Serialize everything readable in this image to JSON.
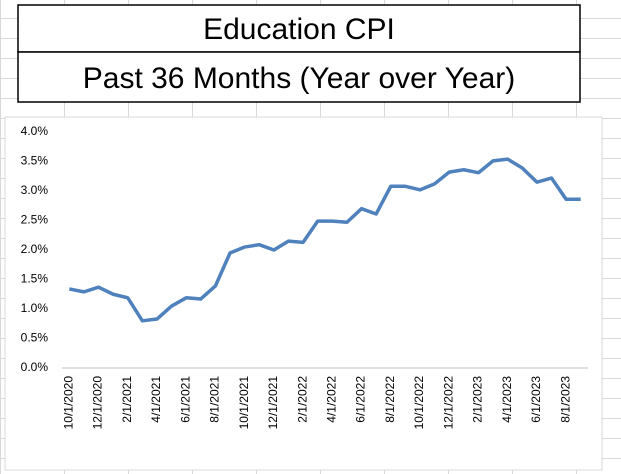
{
  "chart_data": {
    "type": "line",
    "title": "Education CPI",
    "subtitle": "Past 36 Months (Year over Year)",
    "categories": [
      "10/1/2020",
      null,
      "12/1/2020",
      null,
      "2/1/2021",
      null,
      "4/1/2021",
      null,
      "6/1/2021",
      null,
      "8/1/2021",
      null,
      "10/1/2021",
      null,
      "12/1/2021",
      null,
      "2/1/2022",
      null,
      "4/1/2022",
      null,
      "6/1/2022",
      null,
      "8/1/2022",
      null,
      "10/1/2022",
      null,
      "12/1/2022",
      null,
      "2/1/2023",
      null,
      "4/1/2023",
      null,
      "6/1/2023",
      null,
      "8/1/2023",
      null
    ],
    "values": [
      1.34,
      1.29,
      1.37,
      1.25,
      1.19,
      0.8,
      0.83,
      1.05,
      1.19,
      1.17,
      1.39,
      1.95,
      2.05,
      2.09,
      2.0,
      2.15,
      2.13,
      2.49,
      2.49,
      2.47,
      2.7,
      2.61,
      3.08,
      3.08,
      3.02,
      3.12,
      3.32,
      3.36,
      3.31,
      3.51,
      3.54,
      3.39,
      3.15,
      3.22,
      2.86,
      2.86
    ],
    "color": "#4f81bd",
    "ylim": [
      0,
      4.0
    ],
    "yticks": [
      {
        "value": 0,
        "label": "0.0%"
      },
      {
        "value": 0.5,
        "label": "0.5%"
      },
      {
        "value": 1.0,
        "label": "1.0%"
      },
      {
        "value": 1.5,
        "label": "1.5%"
      },
      {
        "value": 2.0,
        "label": "2.0%"
      },
      {
        "value": 2.5,
        "label": "2.5%"
      },
      {
        "value": 3.0,
        "label": "3.0%"
      },
      {
        "value": 3.5,
        "label": "3.5%"
      },
      {
        "value": 4.0,
        "label": "4.0%"
      }
    ],
    "grid": false
  }
}
